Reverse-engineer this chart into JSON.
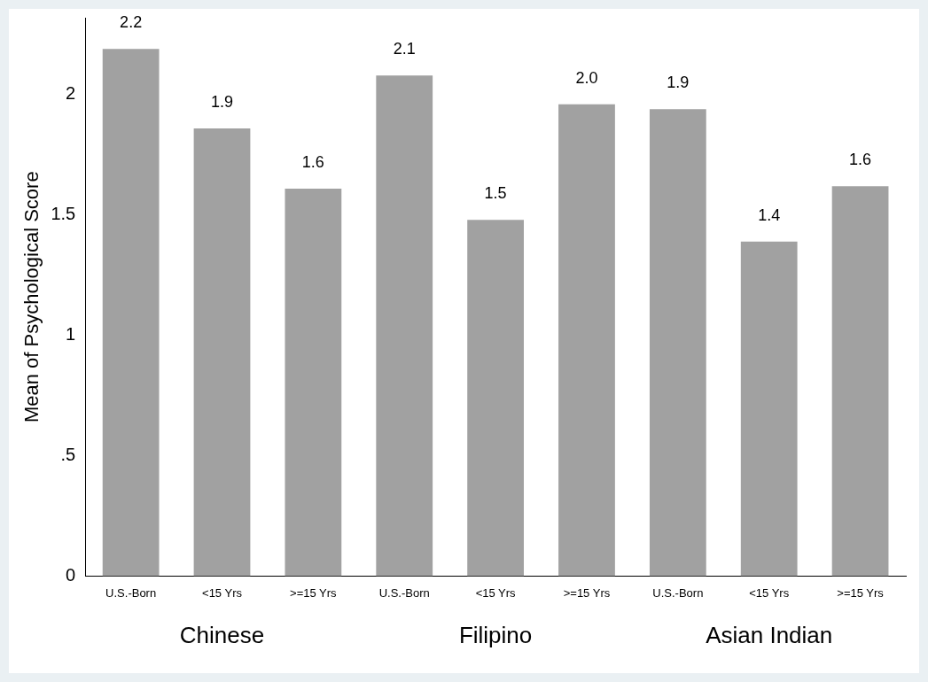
{
  "chart_data": {
    "type": "bar",
    "ylabel": "Mean of Psychological Score",
    "categories": [
      "U.S.-Born",
      "<15 Yrs",
      ">=15 Yrs",
      "U.S.-Born",
      "<15 Yrs",
      ">=15 Yrs",
      "U.S.-Born",
      "<15 Yrs",
      ">=15 Yrs"
    ],
    "values": [
      2.19,
      1.86,
      1.61,
      2.08,
      1.48,
      1.96,
      1.94,
      1.39,
      1.62
    ],
    "value_labels": [
      "2.2",
      "1.9",
      "1.6",
      "2.1",
      "1.5",
      "2.0",
      "1.9",
      "1.4",
      "1.6"
    ],
    "color": "#a1a1a1",
    "ylim": [
      0,
      2.32
    ],
    "yticks": [
      0,
      {
        "value": 0.5,
        "label": ".5"
      },
      1,
      {
        "value": 1.5,
        "label": "1.5"
      },
      2
    ],
    "annotations": [
      "Chinese",
      "Filipino",
      "Asian Indian"
    ],
    "grid": false,
    "legend": false
  }
}
